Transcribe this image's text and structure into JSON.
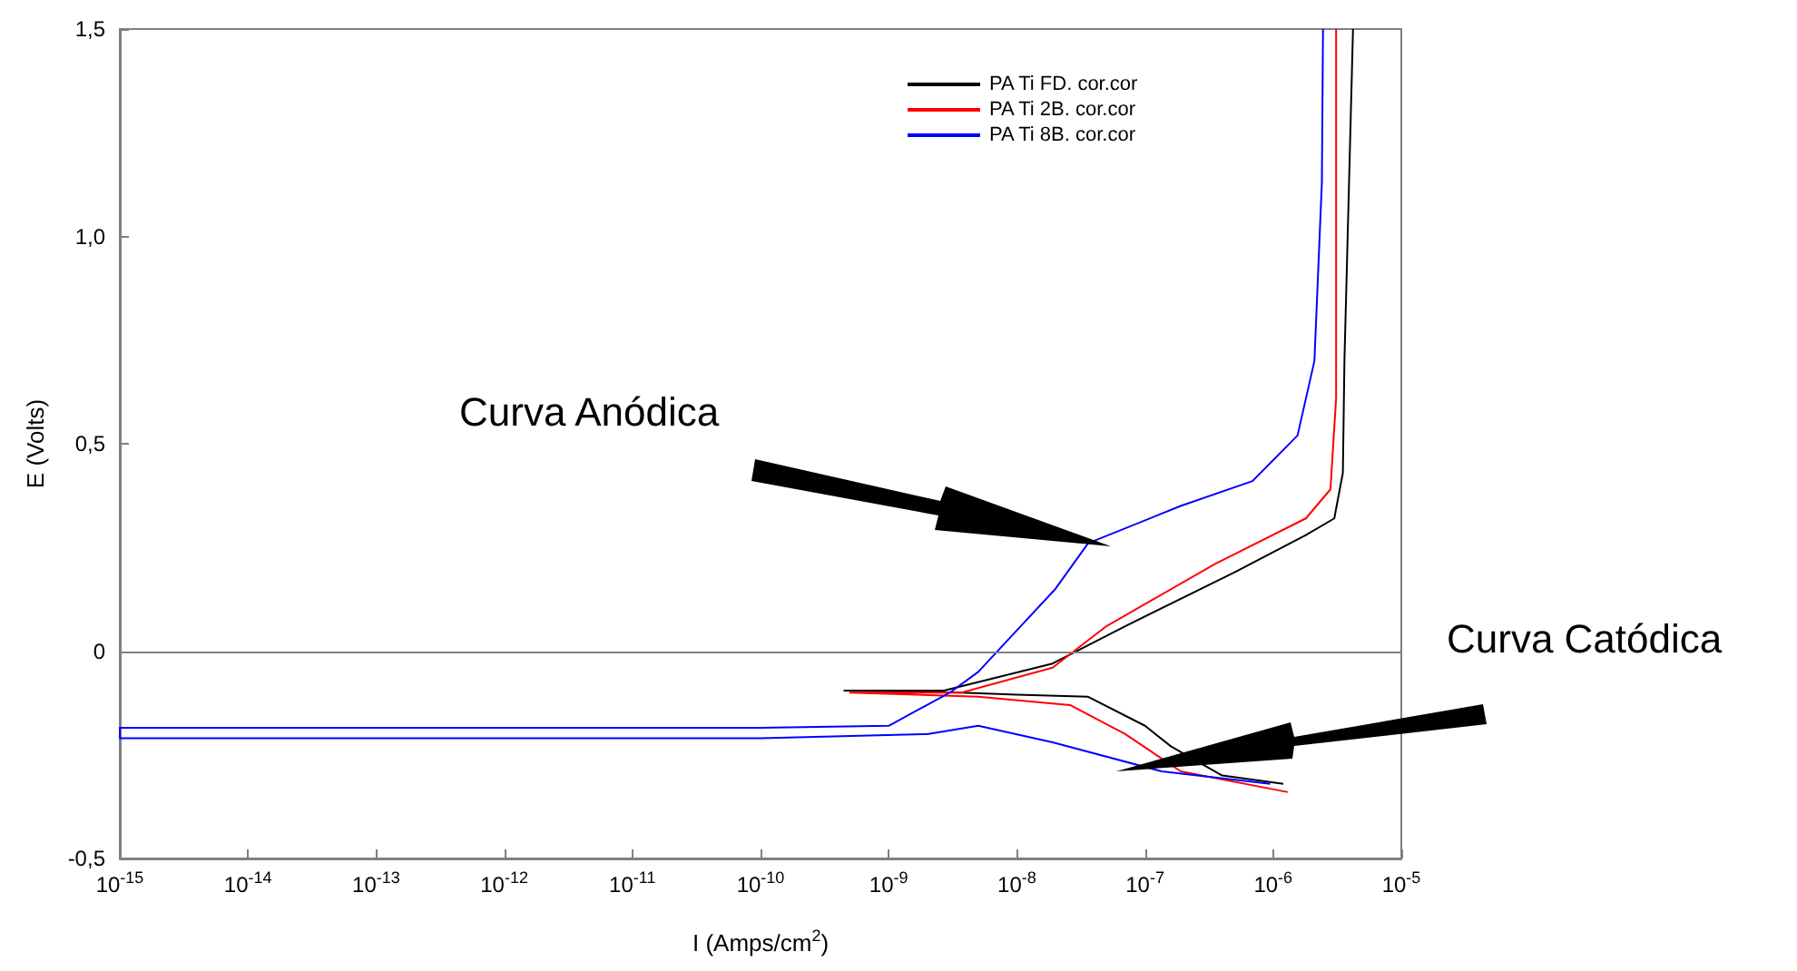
{
  "chart_data": {
    "type": "line",
    "xlabel": "I (Amps/cm$^{2}$)",
    "ylabel": "E (Volts)",
    "annotations": [
      "Curva Anódica",
      "Curva Catódica"
    ],
    "log": "x",
    "grid": false,
    "legend": "top right",
    "marker": "none",
    "line_style": "solid",
    "xlim": [
      1e-15,
      1e-05
    ],
    "xticks": [
      {
        "value": 1e-15,
        "label": "10$^{-15}$"
      },
      {
        "value": 1e-14,
        "label": "10$^{-14}$"
      },
      {
        "value": 1e-13,
        "label": "10$^{-13}$"
      },
      {
        "value": 1e-12,
        "label": "10$^{-12}$"
      },
      {
        "value": 1e-11,
        "label": "10$^{-11}$"
      },
      {
        "value": 1e-10,
        "label": "10$^{-10}$"
      },
      {
        "value": 1e-09,
        "label": "10$^{-9}$"
      },
      {
        "value": 1e-08,
        "label": "10$^{-8}$"
      },
      {
        "value": 1e-07,
        "label": "10$^{-7}$"
      },
      {
        "value": 1e-06,
        "label": "10$^{-6}$"
      },
      {
        "value": 1e-05,
        "label": "10$^{-5}$"
      }
    ],
    "ylim": [
      -0.5,
      1.5
    ],
    "yticks": [
      {
        "value": -0.5,
        "label": "-0,5"
      },
      0,
      {
        "value": 0.5,
        "label": "0,5"
      },
      {
        "value": 1.0,
        "label": "1,0"
      },
      {
        "value": 1.5,
        "label": "1,5"
      }
    ],
    "ref_lines": [
      {
        "axis": "y",
        "value": 0,
        "color": "#808080"
      }
    ],
    "series": [
      {
        "name": "PA Ti FD. cor.cor",
        "color": "#000000",
        "x": [
          1.2e-06,
          4e-07,
          1.6e-07,
          1e-07,
          3.6e-08,
          1e-08,
          3.7e-09,
          4.5e-10,
          2.7e-09,
          1.9e-08,
          7e-08,
          5e-07,
          1.8e-06,
          3e-06,
          3.5e-06,
          3.6e-06,
          4.2e-06
        ],
        "values": [
          -0.32,
          -0.3,
          -0.23,
          -0.18,
          -0.11,
          -0.105,
          -0.1,
          -0.095,
          -0.095,
          -0.03,
          0.06,
          0.19,
          0.28,
          0.32,
          0.43,
          0.7,
          1.5
        ]
      },
      {
        "name": "PA Ti 2B. cor.cor",
        "color": "#ff0000",
        "x": [
          1.3e-06,
          1.9e-07,
          7e-08,
          2.6e-08,
          5e-09,
          5e-10,
          3.7e-09,
          1.9e-08,
          5e-08,
          3.5e-07,
          1.8e-06,
          2.8e-06,
          3.1e-06,
          3.1e-06
        ],
        "values": [
          -0.34,
          -0.29,
          -0.2,
          -0.13,
          -0.11,
          -0.1,
          -0.1,
          -0.04,
          0.06,
          0.21,
          0.32,
          0.39,
          0.61,
          1.5
        ]
      },
      {
        "name": "PA Ti 8B. cor.cor",
        "color": "#0000ff",
        "x": [
          9.5e-07,
          1.35e-07,
          1.9e-08,
          5e-09,
          2e-09,
          1e-10,
          1e-15,
          1e-15,
          1e-10,
          1e-09,
          3e-09,
          5e-09,
          1e-08,
          2e-08,
          3.6e-08,
          1.9e-07,
          6.9e-07,
          1.55e-06,
          2.1e-06,
          2.4e-06,
          2.45e-06
        ],
        "values": [
          -0.32,
          -0.29,
          -0.22,
          -0.18,
          -0.2,
          -0.21,
          -0.21,
          -0.185,
          -0.185,
          -0.18,
          -0.1,
          -0.05,
          0.05,
          0.15,
          0.26,
          0.35,
          0.41,
          0.52,
          0.7,
          1.13,
          1.5
        ]
      }
    ]
  }
}
